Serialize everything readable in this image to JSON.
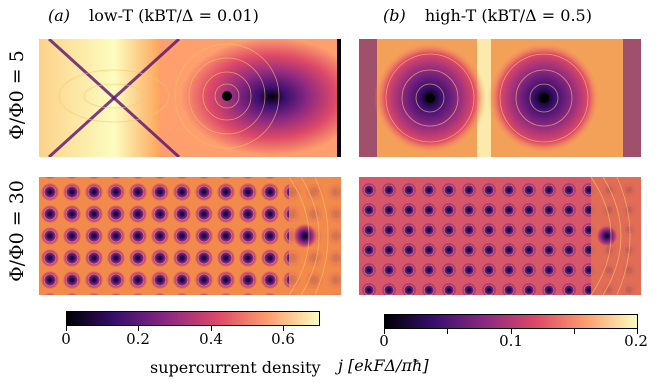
{
  "panels": {
    "a_label": "(a)",
    "a_title": "low-T (kBT/Δ = 0.01)",
    "b_label": "(b)",
    "b_title": "high-T (kBT/Δ = 0.5)"
  },
  "rows": {
    "top": "Φ/Φ0 = 5",
    "bottom": "Φ/Φ0 = 30"
  },
  "colorbars": {
    "left_ticks": [
      "0",
      "0.2",
      "0.4",
      "0.6"
    ],
    "left_range": [
      0,
      0.7
    ],
    "right_ticks": [
      "0",
      "0.1",
      "0.2"
    ],
    "right_range": [
      0,
      0.2
    ],
    "xlabel_left": "supercurrent density",
    "xlabel_right": "j [ekFΔ/πħ]"
  },
  "colormap": [
    "#000004",
    "#3b0f70",
    "#8c2981",
    "#de4968",
    "#fe9f6d",
    "#fcfdbf"
  ]
}
